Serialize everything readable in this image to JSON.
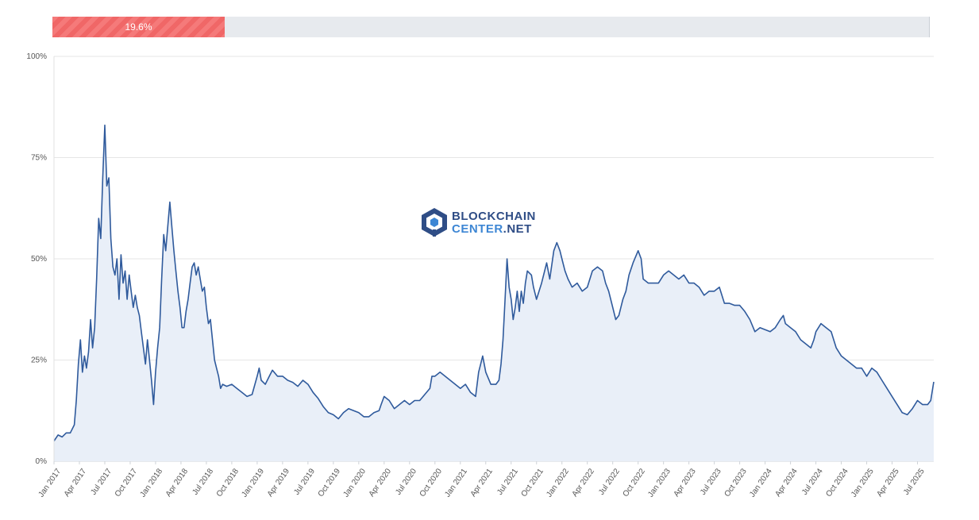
{
  "progress": {
    "value": 19.6,
    "label": "19.6%"
  },
  "logo": {
    "line1": "BLOCKCHAIN",
    "line2a": "CENTER",
    "line2b": ".NET"
  },
  "colors": {
    "line": "#2f5a9c",
    "fill": "#e9eff8",
    "bar": "#f57a7a",
    "grid": "#e6e6e6",
    "track": "#e7eaee"
  },
  "chart_data": {
    "type": "area",
    "title": "",
    "xlabel": "",
    "ylabel": "",
    "ylim": [
      0,
      100
    ],
    "yticks": [
      0,
      25,
      50,
      75,
      100
    ],
    "ytick_labels": [
      "0%",
      "25%",
      "50%",
      "75%",
      "100%"
    ],
    "x_range": [
      2017.0,
      2025.66
    ],
    "xticks": [
      {
        "label": "Jan 2017",
        "t": 2017.0
      },
      {
        "label": "Apr 2017",
        "t": 2017.25
      },
      {
        "label": "Jul 2017",
        "t": 2017.5
      },
      {
        "label": "Oct 2017",
        "t": 2017.75
      },
      {
        "label": "Jan 2018",
        "t": 2018.0
      },
      {
        "label": "Apr 2018",
        "t": 2018.25
      },
      {
        "label": "Jul 2018",
        "t": 2018.5
      },
      {
        "label": "Oct 2018",
        "t": 2018.75
      },
      {
        "label": "Jan 2019",
        "t": 2019.0
      },
      {
        "label": "Apr 2019",
        "t": 2019.25
      },
      {
        "label": "Jul 2019",
        "t": 2019.5
      },
      {
        "label": "Oct 2019",
        "t": 2019.75
      },
      {
        "label": "Jan 2020",
        "t": 2020.0
      },
      {
        "label": "Apr 2020",
        "t": 2020.25
      },
      {
        "label": "Jul 2020",
        "t": 2020.5
      },
      {
        "label": "Oct 2020",
        "t": 2020.75
      },
      {
        "label": "Jan 2021",
        "t": 2021.0
      },
      {
        "label": "Apr 2021",
        "t": 2021.25
      },
      {
        "label": "Jul 2021",
        "t": 2021.5
      },
      {
        "label": "Oct 2021",
        "t": 2021.75
      },
      {
        "label": "Jan 2022",
        "t": 2022.0
      },
      {
        "label": "Apr 2022",
        "t": 2022.25
      },
      {
        "label": "Jul 2022",
        "t": 2022.5
      },
      {
        "label": "Oct 2022",
        "t": 2022.75
      },
      {
        "label": "Jan 2023",
        "t": 2023.0
      },
      {
        "label": "Apr 2023",
        "t": 2023.25
      },
      {
        "label": "Jul 2023",
        "t": 2023.5
      },
      {
        "label": "Oct 2023",
        "t": 2023.75
      },
      {
        "label": "Jan 2024",
        "t": 2024.0
      },
      {
        "label": "Apr 2024",
        "t": 2024.25
      },
      {
        "label": "Jul 2024",
        "t": 2024.5
      },
      {
        "label": "Oct 2024",
        "t": 2024.75
      },
      {
        "label": "Jan 2025",
        "t": 2025.0
      },
      {
        "label": "Apr 2025",
        "t": 2025.25
      },
      {
        "label": "Jul 2025",
        "t": 2025.5
      }
    ],
    "series": [
      {
        "name": "Value",
        "points": [
          [
            2017.0,
            5
          ],
          [
            2017.04,
            6.5
          ],
          [
            2017.08,
            6
          ],
          [
            2017.12,
            7
          ],
          [
            2017.16,
            7
          ],
          [
            2017.2,
            9
          ],
          [
            2017.22,
            15
          ],
          [
            2017.24,
            24
          ],
          [
            2017.26,
            30
          ],
          [
            2017.28,
            22
          ],
          [
            2017.3,
            26
          ],
          [
            2017.32,
            23
          ],
          [
            2017.34,
            27
          ],
          [
            2017.36,
            35
          ],
          [
            2017.38,
            28
          ],
          [
            2017.4,
            33
          ],
          [
            2017.42,
            45
          ],
          [
            2017.44,
            60
          ],
          [
            2017.46,
            55
          ],
          [
            2017.48,
            70
          ],
          [
            2017.5,
            83
          ],
          [
            2017.52,
            68
          ],
          [
            2017.54,
            70
          ],
          [
            2017.56,
            55
          ],
          [
            2017.58,
            48
          ],
          [
            2017.6,
            46
          ],
          [
            2017.62,
            50
          ],
          [
            2017.64,
            40
          ],
          [
            2017.66,
            51
          ],
          [
            2017.68,
            44
          ],
          [
            2017.7,
            47
          ],
          [
            2017.72,
            40
          ],
          [
            2017.74,
            46
          ],
          [
            2017.76,
            42
          ],
          [
            2017.78,
            38
          ],
          [
            2017.8,
            41
          ],
          [
            2017.82,
            38
          ],
          [
            2017.84,
            36
          ],
          [
            2017.86,
            32
          ],
          [
            2017.88,
            28
          ],
          [
            2017.9,
            24
          ],
          [
            2017.92,
            30
          ],
          [
            2017.94,
            25
          ],
          [
            2017.96,
            20
          ],
          [
            2017.98,
            14
          ],
          [
            2018.0,
            22
          ],
          [
            2018.02,
            28
          ],
          [
            2018.04,
            33
          ],
          [
            2018.06,
            45
          ],
          [
            2018.08,
            56
          ],
          [
            2018.1,
            52
          ],
          [
            2018.12,
            58
          ],
          [
            2018.14,
            64
          ],
          [
            2018.16,
            58
          ],
          [
            2018.18,
            52
          ],
          [
            2018.2,
            47
          ],
          [
            2018.22,
            42
          ],
          [
            2018.24,
            38
          ],
          [
            2018.26,
            33
          ],
          [
            2018.28,
            33
          ],
          [
            2018.3,
            37
          ],
          [
            2018.32,
            40
          ],
          [
            2018.34,
            44
          ],
          [
            2018.36,
            48
          ],
          [
            2018.38,
            49
          ],
          [
            2018.4,
            46
          ],
          [
            2018.42,
            48
          ],
          [
            2018.44,
            45
          ],
          [
            2018.46,
            42
          ],
          [
            2018.48,
            43
          ],
          [
            2018.5,
            38
          ],
          [
            2018.52,
            34
          ],
          [
            2018.54,
            35
          ],
          [
            2018.56,
            30
          ],
          [
            2018.58,
            25
          ],
          [
            2018.6,
            23
          ],
          [
            2018.62,
            21
          ],
          [
            2018.64,
            18
          ],
          [
            2018.66,
            19
          ],
          [
            2018.7,
            18.5
          ],
          [
            2018.75,
            19
          ],
          [
            2018.8,
            18
          ],
          [
            2018.85,
            17
          ],
          [
            2018.9,
            16
          ],
          [
            2018.95,
            16.5
          ],
          [
            2019.0,
            21
          ],
          [
            2019.02,
            23
          ],
          [
            2019.04,
            20
          ],
          [
            2019.08,
            19
          ],
          [
            2019.12,
            21
          ],
          [
            2019.15,
            22.5
          ],
          [
            2019.2,
            21
          ],
          [
            2019.25,
            21
          ],
          [
            2019.3,
            20
          ],
          [
            2019.35,
            19.5
          ],
          [
            2019.4,
            18.5
          ],
          [
            2019.45,
            20
          ],
          [
            2019.5,
            19
          ],
          [
            2019.55,
            17
          ],
          [
            2019.6,
            15.5
          ],
          [
            2019.65,
            13.5
          ],
          [
            2019.7,
            12
          ],
          [
            2019.75,
            11.5
          ],
          [
            2019.8,
            10.5
          ],
          [
            2019.85,
            12
          ],
          [
            2019.9,
            13
          ],
          [
            2019.95,
            12.5
          ],
          [
            2020.0,
            12
          ],
          [
            2020.05,
            11
          ],
          [
            2020.1,
            11
          ],
          [
            2020.15,
            12
          ],
          [
            2020.2,
            12.5
          ],
          [
            2020.22,
            14
          ],
          [
            2020.25,
            16
          ],
          [
            2020.3,
            15
          ],
          [
            2020.35,
            13
          ],
          [
            2020.4,
            14
          ],
          [
            2020.45,
            15
          ],
          [
            2020.5,
            14
          ],
          [
            2020.55,
            15
          ],
          [
            2020.6,
            15
          ],
          [
            2020.65,
            16.5
          ],
          [
            2020.7,
            18
          ],
          [
            2020.72,
            21
          ],
          [
            2020.75,
            21
          ],
          [
            2020.8,
            22
          ],
          [
            2020.85,
            21
          ],
          [
            2020.9,
            20
          ],
          [
            2020.95,
            19
          ],
          [
            2021.0,
            18
          ],
          [
            2021.05,
            19
          ],
          [
            2021.1,
            17
          ],
          [
            2021.15,
            16
          ],
          [
            2021.18,
            22
          ],
          [
            2021.2,
            24
          ],
          [
            2021.22,
            26
          ],
          [
            2021.25,
            22
          ],
          [
            2021.3,
            19
          ],
          [
            2021.35,
            19
          ],
          [
            2021.38,
            20
          ],
          [
            2021.4,
            24
          ],
          [
            2021.42,
            30
          ],
          [
            2021.44,
            40
          ],
          [
            2021.46,
            50
          ],
          [
            2021.48,
            43
          ],
          [
            2021.5,
            40
          ],
          [
            2021.52,
            35
          ],
          [
            2021.54,
            38
          ],
          [
            2021.56,
            42
          ],
          [
            2021.58,
            37
          ],
          [
            2021.6,
            42
          ],
          [
            2021.62,
            39
          ],
          [
            2021.64,
            44
          ],
          [
            2021.66,
            47
          ],
          [
            2021.7,
            46
          ],
          [
            2021.72,
            43
          ],
          [
            2021.75,
            40
          ],
          [
            2021.8,
            44
          ],
          [
            2021.85,
            49
          ],
          [
            2021.88,
            45
          ],
          [
            2021.92,
            52
          ],
          [
            2021.95,
            54
          ],
          [
            2021.98,
            52
          ],
          [
            2022.0,
            50
          ],
          [
            2022.03,
            47
          ],
          [
            2022.06,
            45
          ],
          [
            2022.1,
            43
          ],
          [
            2022.15,
            44
          ],
          [
            2022.2,
            42
          ],
          [
            2022.25,
            43
          ],
          [
            2022.3,
            47
          ],
          [
            2022.35,
            48
          ],
          [
            2022.4,
            47
          ],
          [
            2022.43,
            44
          ],
          [
            2022.46,
            42
          ],
          [
            2022.5,
            38
          ],
          [
            2022.53,
            35
          ],
          [
            2022.56,
            36
          ],
          [
            2022.6,
            40
          ],
          [
            2022.63,
            42
          ],
          [
            2022.66,
            46
          ],
          [
            2022.7,
            49
          ],
          [
            2022.75,
            52
          ],
          [
            2022.78,
            50
          ],
          [
            2022.8,
            45
          ],
          [
            2022.85,
            44
          ],
          [
            2022.9,
            44
          ],
          [
            2022.95,
            44
          ],
          [
            2023.0,
            46
          ],
          [
            2023.05,
            47
          ],
          [
            2023.1,
            46
          ],
          [
            2023.15,
            45
          ],
          [
            2023.2,
            46
          ],
          [
            2023.25,
            44
          ],
          [
            2023.3,
            44
          ],
          [
            2023.35,
            43
          ],
          [
            2023.4,
            41
          ],
          [
            2023.45,
            42
          ],
          [
            2023.5,
            42
          ],
          [
            2023.55,
            43
          ],
          [
            2023.6,
            39
          ],
          [
            2023.65,
            39
          ],
          [
            2023.7,
            38.5
          ],
          [
            2023.75,
            38.5
          ],
          [
            2023.8,
            37
          ],
          [
            2023.85,
            35
          ],
          [
            2023.9,
            32
          ],
          [
            2023.95,
            33
          ],
          [
            2024.0,
            32.5
          ],
          [
            2024.05,
            32
          ],
          [
            2024.1,
            33
          ],
          [
            2024.15,
            35
          ],
          [
            2024.18,
            36
          ],
          [
            2024.2,
            34
          ],
          [
            2024.25,
            33
          ],
          [
            2024.3,
            32
          ],
          [
            2024.35,
            30
          ],
          [
            2024.4,
            29
          ],
          [
            2024.45,
            28
          ],
          [
            2024.48,
            30
          ],
          [
            2024.5,
            32
          ],
          [
            2024.55,
            34
          ],
          [
            2024.6,
            33
          ],
          [
            2024.65,
            32
          ],
          [
            2024.7,
            28
          ],
          [
            2024.75,
            26
          ],
          [
            2024.8,
            25
          ],
          [
            2024.85,
            24
          ],
          [
            2024.9,
            23
          ],
          [
            2024.95,
            23
          ],
          [
            2025.0,
            21
          ],
          [
            2025.05,
            23
          ],
          [
            2025.1,
            22
          ],
          [
            2025.15,
            20
          ],
          [
            2025.2,
            18
          ],
          [
            2025.25,
            16
          ],
          [
            2025.3,
            14
          ],
          [
            2025.35,
            12
          ],
          [
            2025.4,
            11.5
          ],
          [
            2025.45,
            13
          ],
          [
            2025.5,
            15
          ],
          [
            2025.55,
            14
          ],
          [
            2025.6,
            14
          ],
          [
            2025.63,
            15
          ],
          [
            2025.66,
            19.6
          ]
        ]
      }
    ]
  }
}
